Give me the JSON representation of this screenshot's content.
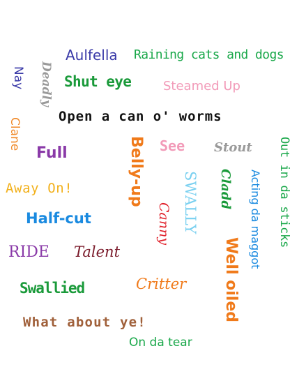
{
  "words": {
    "aulfella": {
      "text": "Aulfella",
      "color": "#3a3aa8"
    },
    "raining": {
      "text": "Raining cats and dogs",
      "color": "#1aa84a"
    },
    "nay": {
      "text": "Nay",
      "color": "#3a3aa8"
    },
    "deadly": {
      "text": "Deadly",
      "color": "#9a9a9a"
    },
    "shut_eye": {
      "text": "Shut eye",
      "color": "#1a9a3a"
    },
    "steamed_up": {
      "text": "Steamed Up",
      "color": "#f29ab8"
    },
    "open_can": {
      "text": "Open a can o' worms",
      "color": "#111111"
    },
    "clane": {
      "text": "Clane",
      "color": "#f08a2a"
    },
    "full": {
      "text": "Full",
      "color": "#8a3aa8"
    },
    "belly_up": {
      "text": "Belly-up",
      "color": "#f07a1a"
    },
    "see": {
      "text": "See",
      "color": "#f29ab8"
    },
    "stout": {
      "text": "Stout",
      "color": "#9a9a9a"
    },
    "out_sticks": {
      "text": "Out in da sticks",
      "color": "#1aa84a"
    },
    "away_on": {
      "text": "Away On!",
      "color": "#f2b01a"
    },
    "swally": {
      "text": "SWALLY",
      "color": "#7ad0f0"
    },
    "clad": {
      "text": "Cladd",
      "color": "#1a9a3a"
    },
    "acting": {
      "text": "Acting da maggot",
      "color": "#1a8ae0"
    },
    "half_cut": {
      "text": "Half-cut",
      "color": "#1a8ae0"
    },
    "canny": {
      "text": "Canny",
      "color": "#e0202a"
    },
    "ride": {
      "text": "RIDE",
      "color": "#8a3aa8"
    },
    "talent": {
      "text": "Talent",
      "color": "#7a1a2a"
    },
    "well_oiled": {
      "text": "Well oiled",
      "color": "#f07a1a"
    },
    "swallied": {
      "text": "Swallied",
      "color": "#1a9a3a"
    },
    "critter": {
      "text": "Critter",
      "color": "#f07a1a"
    },
    "what_about": {
      "text": "What about ye!",
      "color": "#a0603a"
    },
    "on_da_tear": {
      "text": "On da tear",
      "color": "#1aa84a"
    }
  }
}
